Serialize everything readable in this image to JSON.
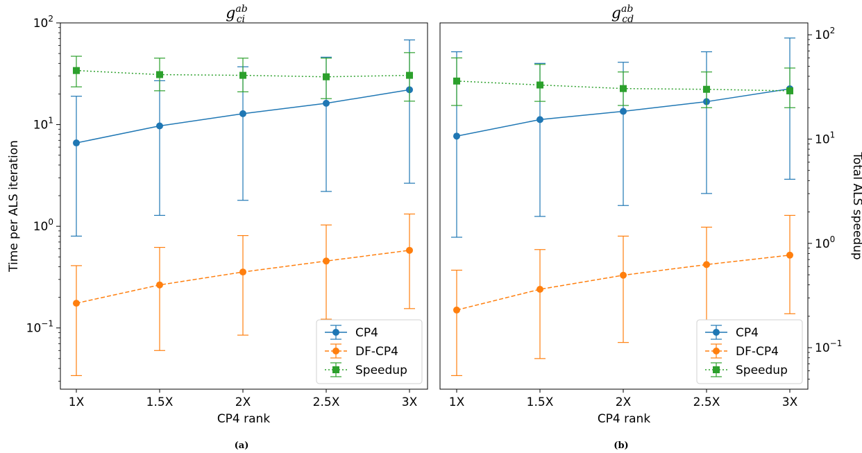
{
  "chart_data": [
    {
      "type": "line",
      "panel": "(a)",
      "title": {
        "base": "g",
        "sup": "ab",
        "sub": "ci"
      },
      "xlabel": "CP4 rank",
      "ylabel": "Time per ALS iteration",
      "y_scale": "log",
      "ylim": [
        0.025,
        100
      ],
      "categories": [
        "1X",
        "1.5X",
        "2X",
        "2.5X",
        "3X"
      ],
      "y_ticks": [
        {
          "value": 0.1,
          "base": "10",
          "exp": "−1"
        },
        {
          "value": 1,
          "base": "10",
          "exp": "0"
        },
        {
          "value": 10,
          "base": "10",
          "exp": "1"
        },
        {
          "value": 100,
          "base": "10",
          "exp": "2"
        }
      ],
      "legend_position": "lower right",
      "series": [
        {
          "name": "CP4",
          "values": [
            6.6,
            9.7,
            12.8,
            16.2,
            22
          ],
          "lower": [
            0.8,
            1.28,
            1.8,
            2.2,
            2.65
          ],
          "upper": [
            19,
            27,
            37,
            46,
            68
          ]
        },
        {
          "name": "DF-CP4",
          "values": [
            0.175,
            0.265,
            0.355,
            0.455,
            0.58
          ],
          "lower": [
            0.034,
            0.06,
            0.085,
            0.122,
            0.155
          ],
          "upper": [
            0.41,
            0.62,
            0.81,
            1.03,
            1.32
          ]
        },
        {
          "name": "Speedup",
          "axis": "right",
          "values": [
            34,
            31,
            30.5,
            29.5,
            30.5
          ],
          "lower": [
            23.5,
            21.5,
            21,
            18,
            17
          ],
          "upper": [
            47,
            45,
            45,
            45,
            51
          ]
        }
      ]
    },
    {
      "type": "line",
      "panel": "(b)",
      "title": {
        "base": "g",
        "sup": "ab",
        "sub": "cd"
      },
      "xlabel": "CP4 rank",
      "ylabel_right": "Total ALS speedup",
      "y_scale": "log",
      "ylim": [
        0.025,
        100
      ],
      "right_ylim": [
        0.04,
        130
      ],
      "categories": [
        "1X",
        "1.5X",
        "2X",
        "2.5X",
        "3X"
      ],
      "right_y_ticks": [
        {
          "value": 0.1,
          "base": "10",
          "exp": "−1"
        },
        {
          "value": 1,
          "base": "10",
          "exp": "0"
        },
        {
          "value": 10,
          "base": "10",
          "exp": "1"
        },
        {
          "value": 100,
          "base": "10",
          "exp": "2"
        }
      ],
      "legend_position": "lower right",
      "series": [
        {
          "name": "CP4",
          "values": [
            7.7,
            11.2,
            13.5,
            16.8,
            22.5
          ],
          "lower": [
            0.78,
            1.25,
            1.6,
            2.1,
            2.9
          ],
          "upper": [
            52,
            40,
            41,
            52,
            71
          ]
        },
        {
          "name": "DF-CP4",
          "values": [
            0.15,
            0.24,
            0.33,
            0.42,
            0.52
          ],
          "lower": [
            0.034,
            0.05,
            0.072,
            0.105,
            0.138
          ],
          "upper": [
            0.37,
            0.59,
            0.8,
            0.98,
            1.28
          ]
        },
        {
          "name": "Speedup",
          "axis": "right",
          "values": [
            36,
            33,
            30.5,
            30,
            29
          ],
          "lower": [
            21,
            23,
            21,
            20,
            20
          ],
          "upper": [
            60,
            52,
            44,
            44,
            48
          ]
        }
      ]
    }
  ]
}
